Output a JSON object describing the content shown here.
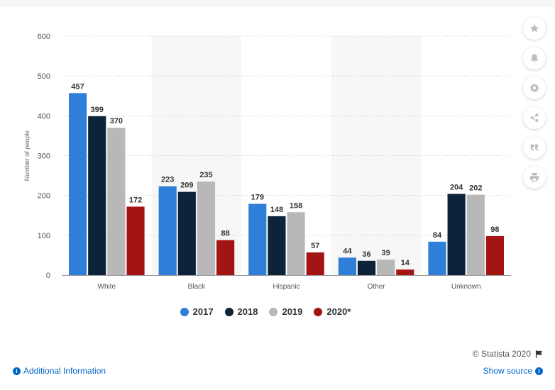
{
  "chart_data": {
    "type": "bar",
    "categories": [
      "White",
      "Black",
      "Hispanic",
      "Other",
      "Unknown"
    ],
    "series": [
      {
        "name": "2017",
        "color": "#2f7ed8",
        "values": [
          457,
          223,
          179,
          44,
          84
        ]
      },
      {
        "name": "2018",
        "color": "#0d233a",
        "values": [
          399,
          209,
          148,
          36,
          204
        ]
      },
      {
        "name": "2019",
        "color": "#b8b8b8",
        "values": [
          370,
          235,
          158,
          39,
          202
        ]
      },
      {
        "name": "2020*",
        "color": "#a31515",
        "values": [
          172,
          88,
          57,
          14,
          98
        ]
      }
    ],
    "ylabel": "Number of people",
    "xlabel": "",
    "ylim": [
      0,
      600
    ],
    "yticks": [
      "0",
      "100",
      "200",
      "300",
      "400",
      "500",
      "600"
    ],
    "grid": true,
    "legend_position": "bottom-center"
  },
  "credit": "© Statista 2020",
  "footer": {
    "additional_info": "Additional Information",
    "show_source": "Show source"
  },
  "tools": [
    "star-icon",
    "bell-icon",
    "gear-icon",
    "share-icon",
    "quote-icon",
    "print-icon"
  ]
}
